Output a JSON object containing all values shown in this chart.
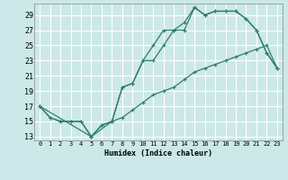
{
  "xlabel": "Humidex (Indice chaleur)",
  "bg_color": "#cce8e8",
  "grid_color": "#b8d8d8",
  "line_color": "#2e7d6e",
  "xlim": [
    -0.5,
    23.5
  ],
  "ylim": [
    12.5,
    30.5
  ],
  "xticks": [
    0,
    1,
    2,
    3,
    4,
    5,
    6,
    7,
    8,
    9,
    10,
    11,
    12,
    13,
    14,
    15,
    16,
    17,
    18,
    19,
    20,
    21,
    22,
    23
  ],
  "yticks": [
    13,
    15,
    17,
    19,
    21,
    23,
    25,
    27,
    29
  ],
  "line1_x": [
    0,
    1,
    2,
    3,
    4,
    5,
    6,
    7,
    8,
    9,
    10,
    11,
    12,
    13,
    14,
    15,
    16,
    17,
    18,
    19,
    20,
    21,
    22,
    23
  ],
  "line1_y": [
    17,
    15.5,
    15,
    15,
    15,
    13,
    14.5,
    15,
    15.5,
    16.5,
    17.5,
    18.5,
    19,
    19.5,
    20.5,
    21.5,
    22,
    22.5,
    23,
    23.5,
    24,
    24.5,
    25,
    22
  ],
  "line2_x": [
    0,
    1,
    2,
    3,
    4,
    5,
    6,
    7,
    8,
    9,
    10,
    11,
    12,
    13,
    14,
    15,
    16,
    17,
    18,
    19,
    20,
    21,
    22,
    23
  ],
  "line2_y": [
    17,
    15.5,
    15,
    15,
    15,
    13,
    14.5,
    15,
    19.5,
    20,
    23,
    25,
    27,
    27,
    28,
    30,
    29,
    29.5,
    29.5,
    29.5,
    28.5,
    27,
    24,
    22
  ],
  "line3_x": [
    0,
    5,
    7,
    8,
    9,
    10,
    11,
    12,
    13,
    14,
    15,
    16,
    17,
    18,
    19,
    20,
    21,
    22,
    23
  ],
  "line3_y": [
    17,
    13,
    15,
    19.5,
    20,
    23,
    23,
    25,
    27,
    27,
    30,
    29,
    29.5,
    29.5,
    29.5,
    28.5,
    27,
    24,
    22
  ]
}
